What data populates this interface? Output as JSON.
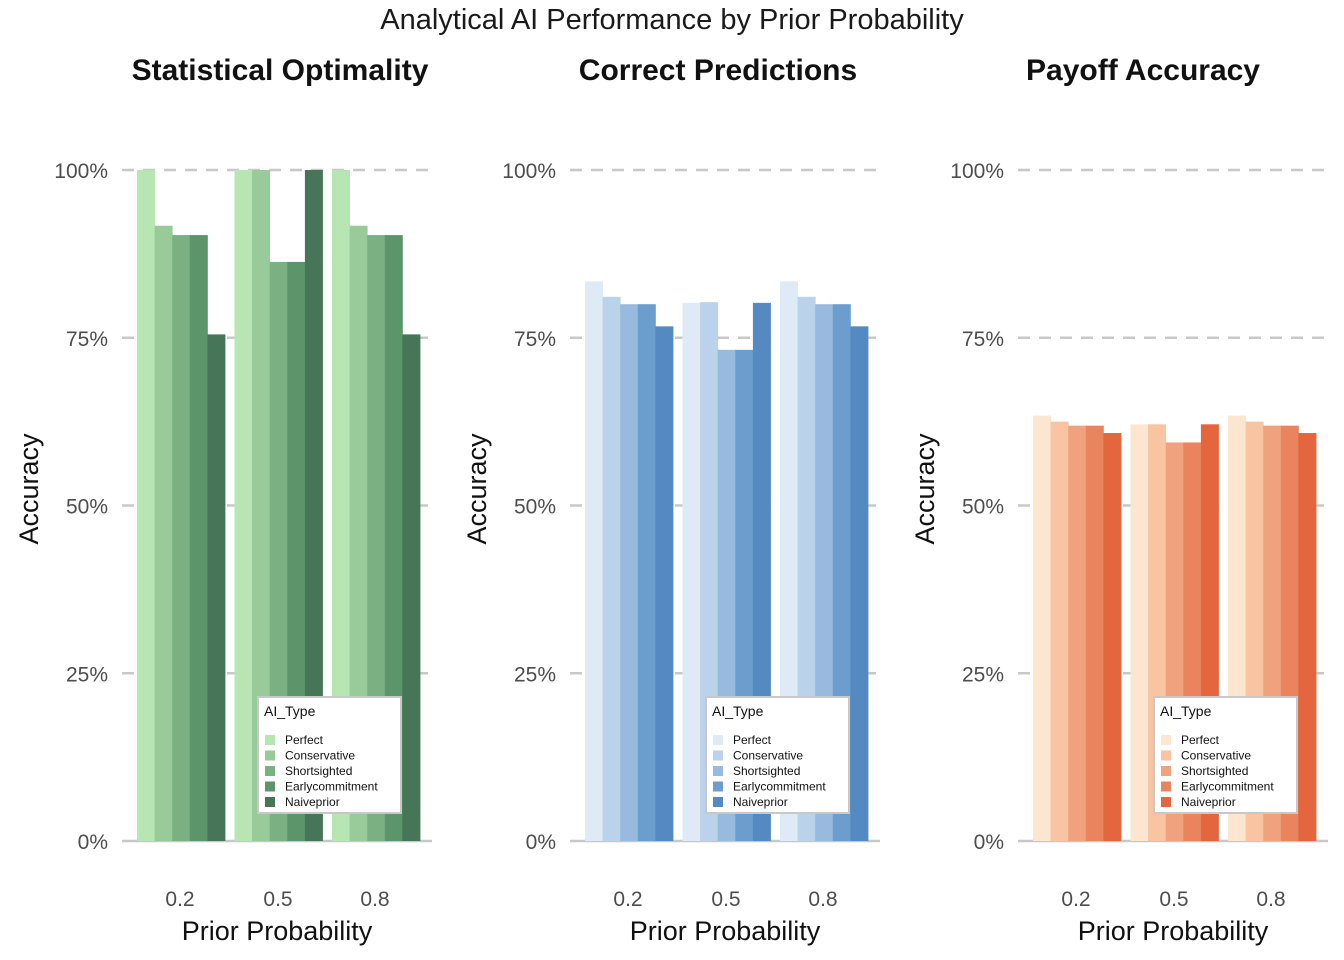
{
  "title": "Analytical AI Performance by Prior Probability",
  "chart_data": [
    {
      "type": "bar",
      "title": "Statistical Optimality",
      "xlabel": "Prior Probability",
      "ylabel": "Accuracy",
      "categories": [
        "0.2",
        "0.5",
        "0.8"
      ],
      "ylim": [
        0,
        1
      ],
      "yticks": [
        "0%",
        "25%",
        "50%",
        "75%",
        "100%"
      ],
      "legend_title": "AI_Type",
      "legend_position": "bottom-right",
      "colors": [
        "#b7e6b2",
        "#99cb9a",
        "#7ab082",
        "#5c956a",
        "#467657"
      ],
      "series": [
        {
          "name": "Perfect",
          "values": [
            1.0,
            1.0,
            1.0
          ]
        },
        {
          "name": "Conservative",
          "values": [
            0.917,
            1.0,
            0.917
          ]
        },
        {
          "name": "Shortsighted",
          "values": [
            0.903,
            0.863,
            0.903
          ]
        },
        {
          "name": "Earlycommitment",
          "values": [
            0.903,
            0.863,
            0.903
          ]
        },
        {
          "name": "Naiveprior",
          "values": [
            0.755,
            1.0,
            0.755
          ]
        }
      ]
    },
    {
      "type": "bar",
      "title": "Correct Predictions",
      "xlabel": "Prior Probability",
      "ylabel": "Accuracy",
      "categories": [
        "0.2",
        "0.5",
        "0.8"
      ],
      "ylim": [
        0,
        1
      ],
      "yticks": [
        "0%",
        "25%",
        "50%",
        "75%",
        "100%"
      ],
      "legend_title": "AI_Type",
      "legend_position": "bottom-right",
      "colors": [
        "#deebf7",
        "#bad2ea",
        "#97bade",
        "#6b9ecd",
        "#5589c1"
      ],
      "series": [
        {
          "name": "Perfect",
          "values": [
            0.834,
            0.802,
            0.834
          ]
        },
        {
          "name": "Conservative",
          "values": [
            0.811,
            0.803,
            0.811
          ]
        },
        {
          "name": "Shortsighted",
          "values": [
            0.8,
            0.732,
            0.8
          ]
        },
        {
          "name": "Earlycommitment",
          "values": [
            0.8,
            0.732,
            0.8
          ]
        },
        {
          "name": "Naiveprior",
          "values": [
            0.767,
            0.802,
            0.767
          ]
        }
      ]
    },
    {
      "type": "bar",
      "title": "Payoff Accuracy",
      "xlabel": "Prior Probability",
      "ylabel": "Accuracy",
      "categories": [
        "0.2",
        "0.5",
        "0.8"
      ],
      "ylim": [
        0,
        1
      ],
      "yticks": [
        "0%",
        "25%",
        "50%",
        "75%",
        "100%"
      ],
      "legend_title": "AI_Type",
      "legend_position": "bottom-right",
      "colors": [
        "#fce6cf",
        "#f8c4a1",
        "#f0a27f",
        "#ea845f",
        "#e4663f"
      ],
      "series": [
        {
          "name": "Perfect",
          "values": [
            0.634,
            0.621,
            0.634
          ]
        },
        {
          "name": "Conservative",
          "values": [
            0.625,
            0.621,
            0.625
          ]
        },
        {
          "name": "Shortsighted",
          "values": [
            0.619,
            0.594,
            0.619
          ]
        },
        {
          "name": "Earlycommitment",
          "values": [
            0.619,
            0.594,
            0.619
          ]
        },
        {
          "name": "Naiveprior",
          "values": [
            0.608,
            0.621,
            0.608
          ]
        }
      ]
    }
  ]
}
